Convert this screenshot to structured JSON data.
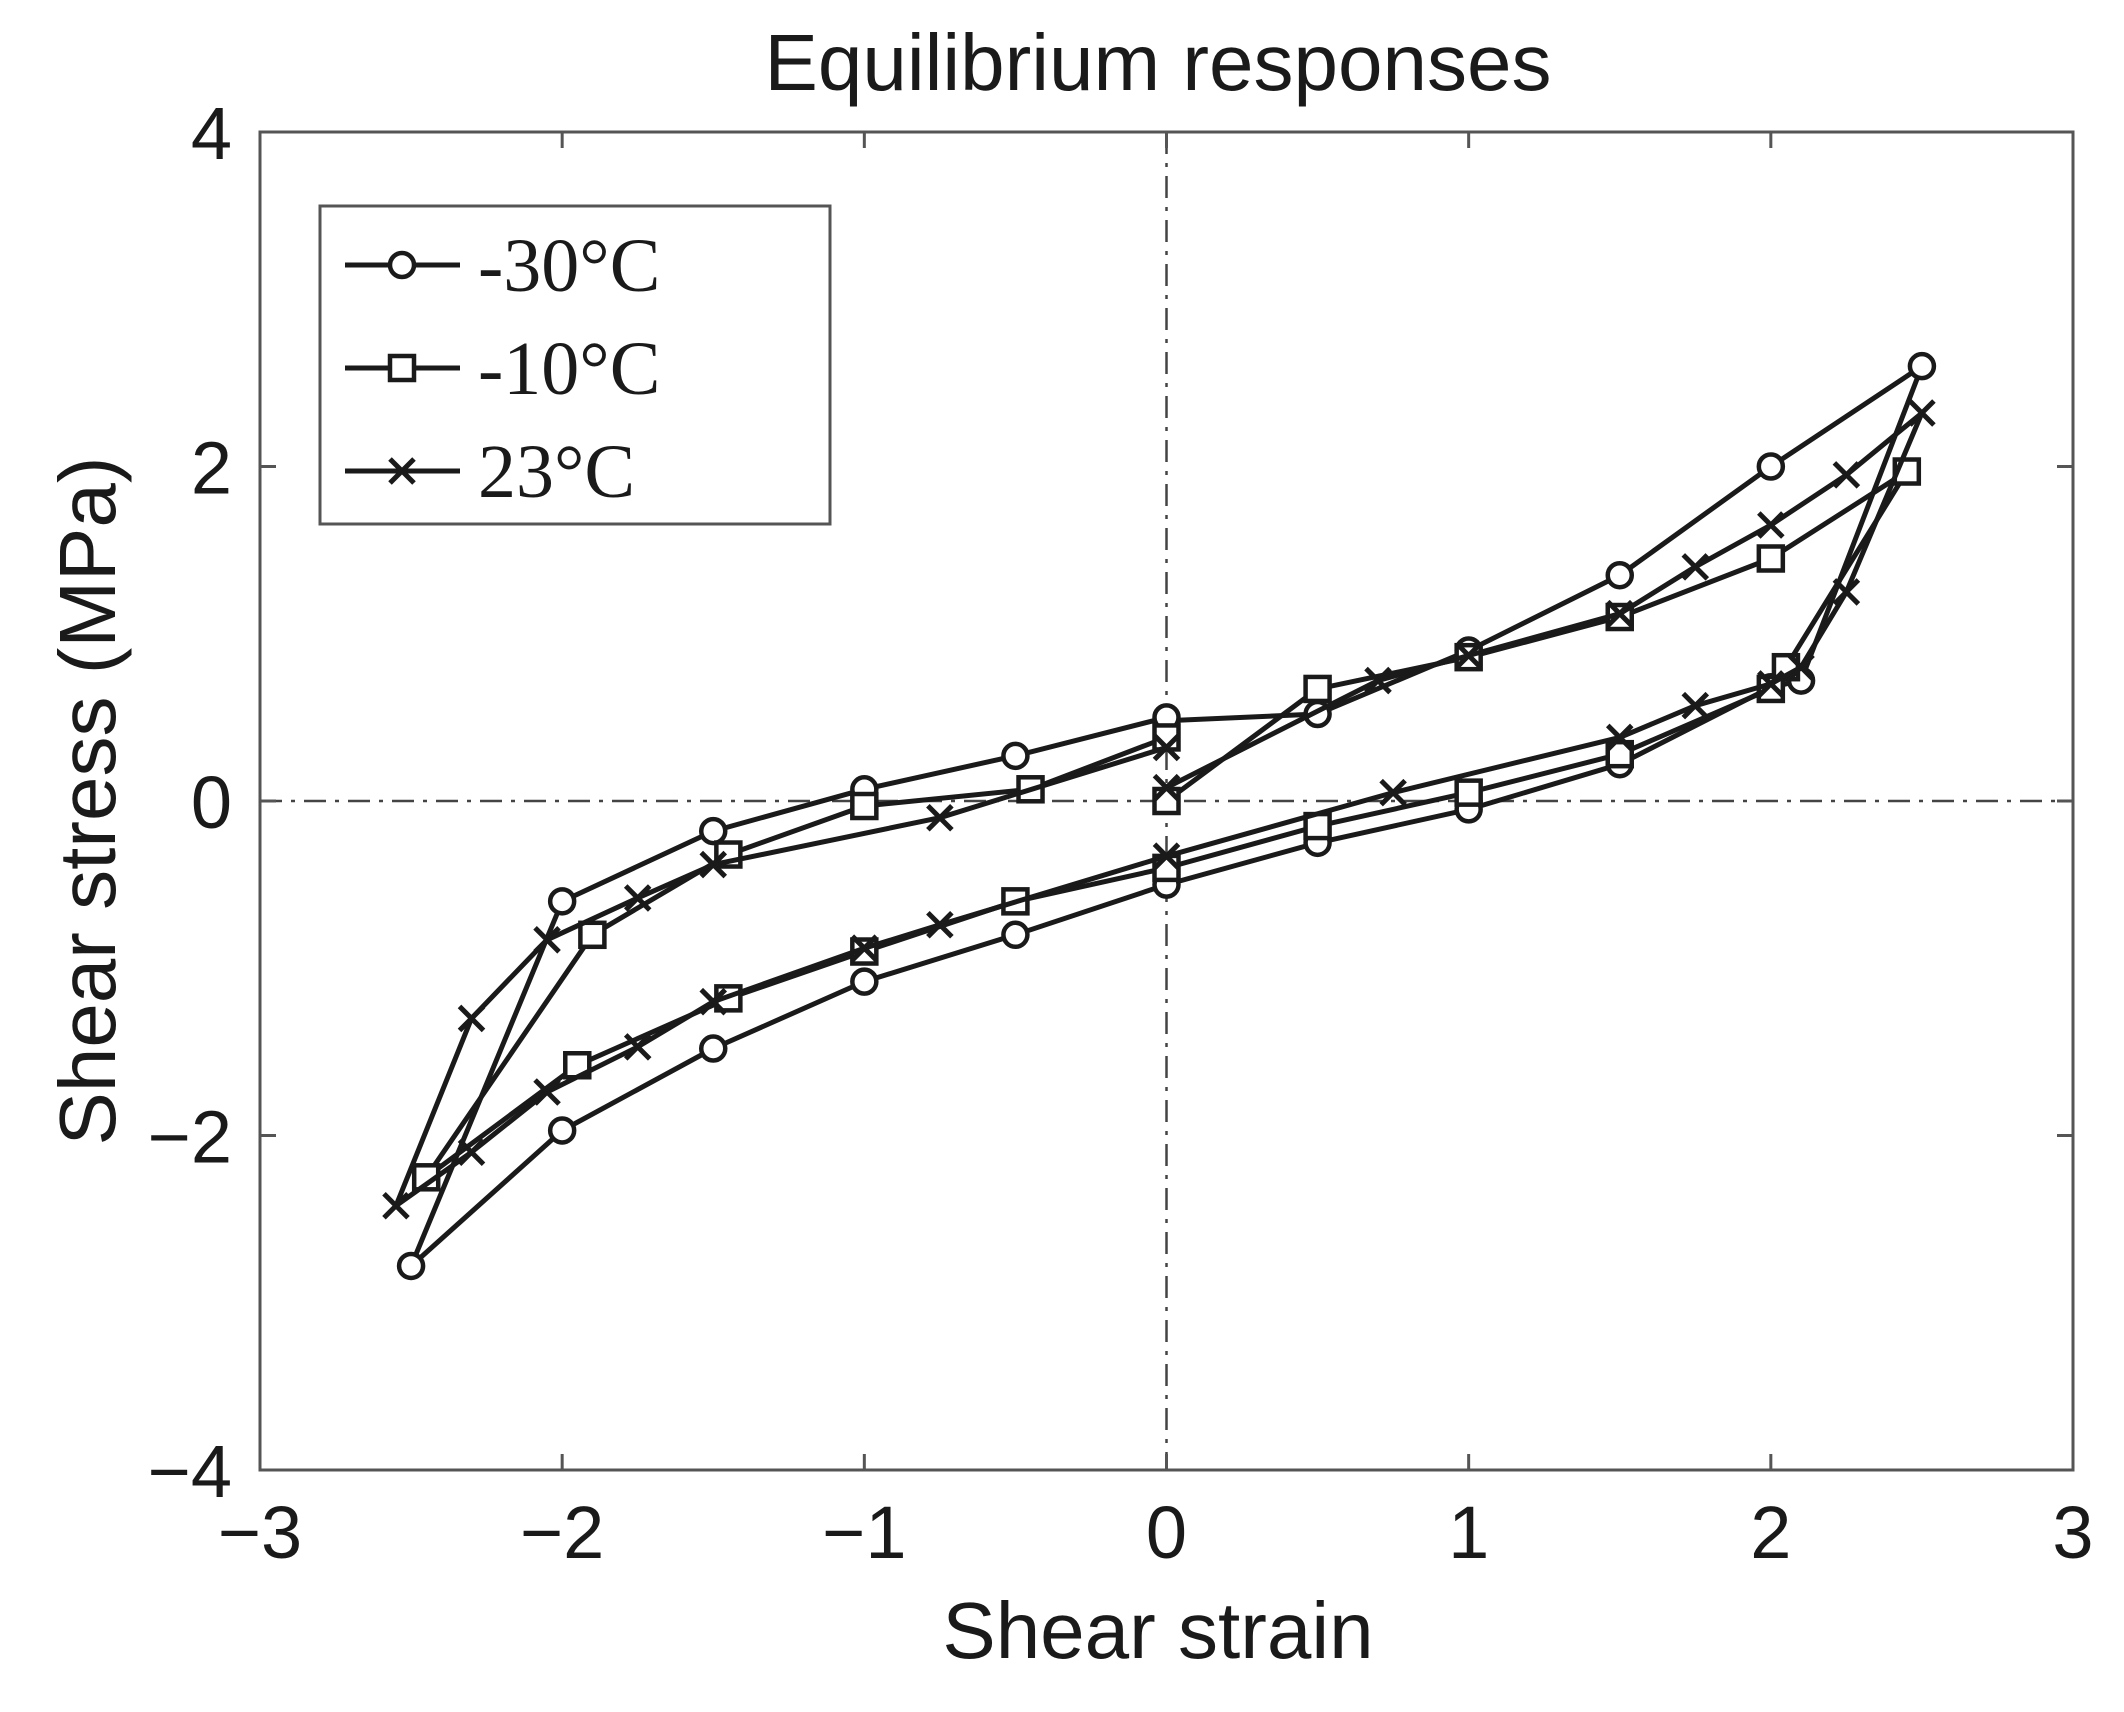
{
  "chart_data": {
    "type": "line",
    "title": "Equilibrium responses",
    "xlabel": "Shear strain",
    "ylabel": "Shear stress (MPa)",
    "xlim": [
      -3,
      3
    ],
    "ylim": [
      -4,
      4
    ],
    "xticks": [
      -3,
      -2,
      -1,
      0,
      1,
      2,
      3
    ],
    "yticks": [
      -4,
      -2,
      0,
      2,
      4
    ],
    "xtick_labels": [
      "−3",
      "−2",
      "−1",
      "0",
      "1",
      "2",
      "3"
    ],
    "ytick_labels": [
      "−4",
      "−2",
      "0",
      "2",
      "4"
    ],
    "grid": false,
    "reference_lines": [
      "x = 0",
      "y = 0"
    ],
    "legend_position": "top-left",
    "color": "#1a1a1a",
    "series": [
      {
        "name": "-30°C",
        "marker": "circle",
        "x": [
          0,
          0.5,
          1,
          1.5,
          2,
          2.5,
          2.1,
          2.0,
          1.5,
          1.0,
          0.5,
          0,
          -0.5,
          -1.0,
          -1.5,
          -2.0,
          -2.5,
          -2.0,
          -1.5,
          -1.0,
          -0.5,
          0
        ],
        "y": [
          0.48,
          0.52,
          0.9,
          1.35,
          2.0,
          2.6,
          0.72,
          0.68,
          0.22,
          -0.05,
          -0.25,
          -0.5,
          -0.8,
          -1.08,
          -1.48,
          -1.97,
          -2.78,
          -0.6,
          -0.18,
          0.07,
          0.27,
          0.5
        ]
      },
      {
        "name": "-10°C",
        "marker": "square",
        "x": [
          0,
          0.5,
          1,
          1.5,
          2,
          2.45,
          2.05,
          2.0,
          1.5,
          1.0,
          0.5,
          0,
          -0.5,
          -1.0,
          -1.45,
          -1.95,
          -2.45,
          -1.9,
          -1.45,
          -1.0,
          -0.45,
          0
        ],
        "y": [
          0.0,
          0.67,
          0.86,
          1.1,
          1.45,
          1.97,
          0.8,
          0.67,
          0.28,
          0.05,
          -0.15,
          -0.4,
          -0.6,
          -0.9,
          -1.18,
          -1.58,
          -2.25,
          -0.8,
          -0.32,
          -0.03,
          0.07,
          0.38
        ]
      },
      {
        "name": "23°C",
        "marker": "x",
        "x": [
          0,
          0.7,
          1,
          1.5,
          1.75,
          2,
          2.25,
          2.5,
          2.25,
          2.1,
          2.0,
          1.75,
          1.5,
          0.75,
          0,
          -0.75,
          -1.0,
          -1.5,
          -1.75,
          -2.05,
          -2.3,
          -2.55,
          -2.3,
          -2.05,
          -1.75,
          -1.5,
          -0.75,
          0
        ],
        "y": [
          0.08,
          0.72,
          0.87,
          1.12,
          1.4,
          1.65,
          1.95,
          2.32,
          1.25,
          0.8,
          0.7,
          0.57,
          0.38,
          0.05,
          -0.33,
          -0.74,
          -0.88,
          -1.2,
          -1.47,
          -1.74,
          -2.1,
          -2.42,
          -1.3,
          -0.83,
          -0.58,
          -0.38,
          -0.1,
          0.32
        ]
      }
    ]
  }
}
